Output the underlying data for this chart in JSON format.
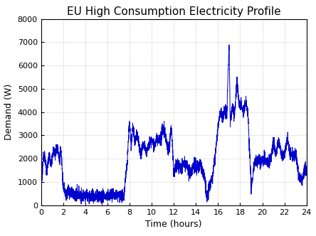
{
  "title": "EU High Consumption Electricity Profile",
  "xlabel": "Time (hours)",
  "ylabel": "Demand (W)",
  "xlim": [
    0,
    24
  ],
  "ylim": [
    0,
    8000
  ],
  "xticks": [
    0,
    2,
    4,
    6,
    8,
    10,
    12,
    14,
    16,
    18,
    20,
    22,
    24
  ],
  "yticks": [
    0,
    1000,
    2000,
    3000,
    4000,
    5000,
    6000,
    7000,
    8000
  ],
  "line_color": "#0000CC",
  "line_width": 0.7,
  "background_color": "#ffffff",
  "grid_color": "#aaaaaa",
  "title_fontsize": 11,
  "label_fontsize": 9,
  "tick_fontsize": 8
}
